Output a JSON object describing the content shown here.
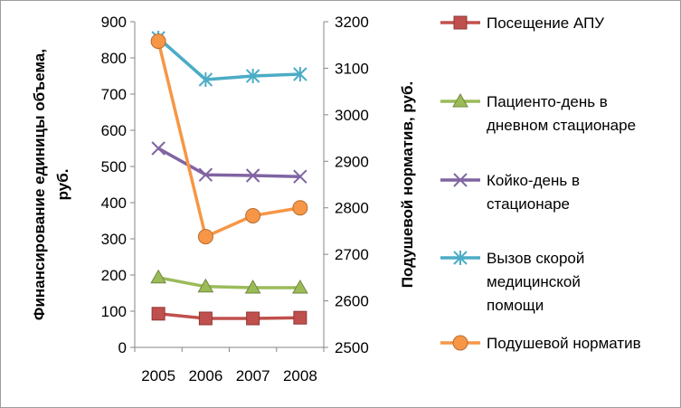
{
  "chart_data": {
    "type": "line",
    "x": [
      "2005",
      "2006",
      "2007",
      "2008"
    ],
    "y_axis_left": {
      "label_line1": "Финансирование единицы объема,",
      "label_line2": "руб.",
      "ylim": [
        0,
        900
      ],
      "ticks": [
        "0",
        "100",
        "200",
        "300",
        "400",
        "500",
        "600",
        "700",
        "800",
        "900"
      ]
    },
    "y_axis_right": {
      "label": "Подушевой норматив, руб.",
      "ylim": [
        2500,
        3200
      ],
      "ticks": [
        "2500",
        "2600",
        "2700",
        "2800",
        "2900",
        "3000",
        "3100",
        "3200"
      ]
    },
    "series": [
      {
        "name": "Посещение АПУ",
        "name_lines": [
          "Посещение АПУ"
        ],
        "axis": "left",
        "values": [
          93,
          80,
          80,
          82
        ],
        "color": "#c0504d",
        "marker": "square"
      },
      {
        "name": "Пациенто-день в дневном стационаре",
        "name_lines": [
          "Пациенто-день в",
          "дневном стационаре"
        ],
        "axis": "left",
        "values": [
          193,
          168,
          165,
          165
        ],
        "color": "#9bbb59",
        "marker": "triangle"
      },
      {
        "name": "Койко-день в стационаре",
        "name_lines": [
          "Койко-день в",
          "стационаре"
        ],
        "axis": "left",
        "values": [
          550,
          477,
          475,
          472
        ],
        "color": "#8064a2",
        "marker": "x"
      },
      {
        "name": "Вызов скорой медицинской помощи",
        "name_lines": [
          "Вызов скорой",
          "медицинской",
          "помощи"
        ],
        "axis": "left",
        "values": [
          855,
          740,
          750,
          755
        ],
        "color": "#4bacc6",
        "marker": "star"
      },
      {
        "name": "Подушевой норматив",
        "name_lines": [
          "Подушевой норматив"
        ],
        "axis": "right",
        "values": [
          3158,
          2738,
          2783,
          2800
        ],
        "color": "#f79646",
        "marker": "circle"
      }
    ],
    "legend_position": "right",
    "grid": false
  }
}
